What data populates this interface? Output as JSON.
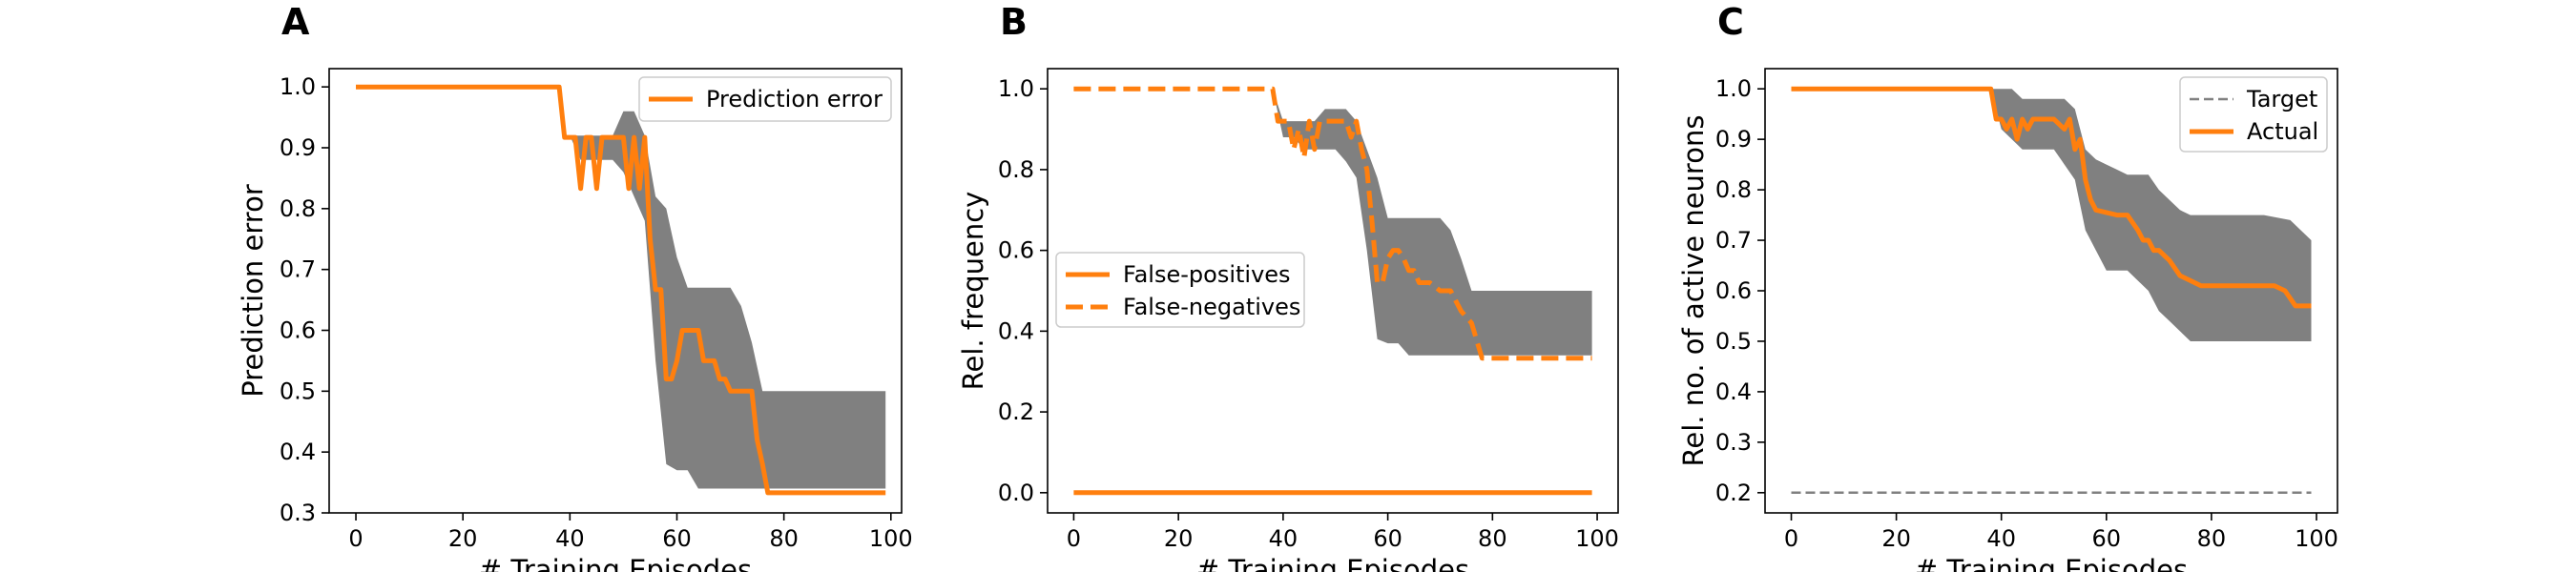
{
  "figure": {
    "panels": [
      {
        "letter": "A"
      },
      {
        "letter": "B"
      },
      {
        "letter": "C"
      }
    ]
  },
  "colors": {
    "orange": "#ff7f0e",
    "band": "#808080",
    "target": "#808080",
    "axis": "#000000",
    "legend_border": "#cccccc"
  },
  "chart_data": [
    {
      "type": "line",
      "panel": "A",
      "title": "",
      "xlabel": "# Training Episodes",
      "ylabel": "Prediction error",
      "xlim": [
        -5,
        102
      ],
      "ylim": [
        0.3,
        1.03
      ],
      "xticks": [
        0,
        20,
        40,
        60,
        80,
        100
      ],
      "yticks": [
        0.3,
        0.4,
        0.5,
        0.6,
        0.7,
        0.8,
        0.9,
        1.0
      ],
      "ytick_labels": [
        "0.3",
        "0.4",
        "0.5",
        "0.6",
        "0.7",
        "0.8",
        "0.9",
        "1.0"
      ],
      "grid": false,
      "legend": {
        "position": "top-right"
      },
      "band": {
        "x": [
          0,
          38,
          40,
          42,
          44,
          46,
          48,
          50,
          52,
          54,
          56,
          58,
          60,
          62,
          64,
          66,
          68,
          70,
          72,
          74,
          76,
          78,
          80,
          85,
          90,
          95,
          99
        ],
        "upper": [
          1.0,
          1.0,
          0.92,
          0.92,
          0.92,
          0.92,
          0.92,
          0.96,
          0.96,
          0.92,
          0.82,
          0.8,
          0.72,
          0.67,
          0.67,
          0.67,
          0.67,
          0.67,
          0.64,
          0.58,
          0.5,
          0.5,
          0.5,
          0.5,
          0.5,
          0.5,
          0.5
        ],
        "lower": [
          1.0,
          1.0,
          0.92,
          0.88,
          0.88,
          0.88,
          0.88,
          0.86,
          0.82,
          0.78,
          0.55,
          0.38,
          0.37,
          0.37,
          0.34,
          0.34,
          0.34,
          0.34,
          0.34,
          0.34,
          0.34,
          0.34,
          0.34,
          0.34,
          0.34,
          0.34,
          0.34
        ]
      },
      "series": [
        {
          "name": "Prediction error",
          "style": "solid",
          "x": [
            0,
            38,
            39,
            41,
            42,
            43,
            44,
            45,
            46,
            47,
            48,
            49,
            50,
            51,
            52,
            53,
            54,
            55,
            56,
            57,
            58,
            59,
            60,
            61,
            62,
            63,
            64,
            65,
            66,
            67,
            68,
            69,
            70,
            71,
            72,
            73,
            74,
            75,
            76,
            77,
            78,
            99
          ],
          "y": [
            1.0,
            1.0,
            0.917,
            0.917,
            0.833,
            0.917,
            0.917,
            0.833,
            0.917,
            0.917,
            0.917,
            0.917,
            0.917,
            0.833,
            0.917,
            0.833,
            0.917,
            0.75,
            0.667,
            0.667,
            0.52,
            0.52,
            0.55,
            0.6,
            0.6,
            0.6,
            0.6,
            0.55,
            0.55,
            0.55,
            0.52,
            0.52,
            0.5,
            0.5,
            0.5,
            0.5,
            0.5,
            0.42,
            0.38,
            0.333,
            0.333,
            0.333
          ]
        }
      ]
    },
    {
      "type": "line",
      "panel": "B",
      "title": "",
      "xlabel": "# Training Episodes",
      "ylabel": "Rel. frequency",
      "xlim": [
        -5,
        104
      ],
      "ylim": [
        -0.05,
        1.05
      ],
      "xticks": [
        0,
        20,
        40,
        60,
        80,
        100
      ],
      "yticks": [
        0.0,
        0.2,
        0.4,
        0.6,
        0.8,
        1.0
      ],
      "ytick_labels": [
        "0.0",
        "0.2",
        "0.4",
        "0.6",
        "0.8",
        "1.0"
      ],
      "grid": false,
      "legend": {
        "position": "center-left"
      },
      "band": {
        "x": [
          0,
          38,
          40,
          42,
          44,
          46,
          48,
          50,
          52,
          54,
          56,
          58,
          60,
          62,
          64,
          66,
          68,
          70,
          72,
          74,
          76,
          78,
          80,
          85,
          90,
          95,
          99
        ],
        "upper": [
          1.0,
          1.0,
          0.92,
          0.92,
          0.92,
          0.92,
          0.95,
          0.95,
          0.95,
          0.92,
          0.85,
          0.78,
          0.68,
          0.68,
          0.68,
          0.68,
          0.68,
          0.68,
          0.65,
          0.58,
          0.5,
          0.5,
          0.5,
          0.5,
          0.5,
          0.5,
          0.5
        ],
        "lower": [
          1.0,
          1.0,
          0.88,
          0.88,
          0.85,
          0.85,
          0.85,
          0.85,
          0.82,
          0.78,
          0.6,
          0.38,
          0.37,
          0.37,
          0.34,
          0.34,
          0.34,
          0.34,
          0.34,
          0.34,
          0.34,
          0.34,
          0.34,
          0.34,
          0.34,
          0.34,
          0.34
        ]
      },
      "series": [
        {
          "name": "False-positives",
          "style": "solid",
          "x": [
            0,
            99
          ],
          "y": [
            0.0,
            0.0
          ]
        },
        {
          "name": "False-negatives",
          "style": "dashed",
          "x": [
            0,
            38,
            39,
            41,
            42,
            43,
            44,
            45,
            46,
            47,
            48,
            50,
            52,
            53,
            54,
            55,
            56,
            57,
            58,
            59,
            60,
            61,
            62,
            63,
            64,
            65,
            66,
            68,
            70,
            72,
            74,
            76,
            78,
            80,
            99
          ],
          "y": [
            1.0,
            1.0,
            0.92,
            0.92,
            0.85,
            0.9,
            0.83,
            0.92,
            0.85,
            0.92,
            0.92,
            0.92,
            0.92,
            0.88,
            0.92,
            0.85,
            0.8,
            0.67,
            0.52,
            0.52,
            0.58,
            0.6,
            0.6,
            0.58,
            0.55,
            0.55,
            0.52,
            0.52,
            0.5,
            0.5,
            0.45,
            0.42,
            0.333,
            0.333,
            0.333
          ]
        }
      ]
    },
    {
      "type": "line",
      "panel": "C",
      "title": "",
      "xlabel": "# Training Episodes",
      "ylabel": "Rel. no. of active neurons",
      "xlim": [
        -5,
        104
      ],
      "ylim": [
        0.16,
        1.04
      ],
      "xticks": [
        0,
        20,
        40,
        60,
        80,
        100
      ],
      "yticks": [
        0.2,
        0.3,
        0.4,
        0.5,
        0.6,
        0.7,
        0.8,
        0.9,
        1.0
      ],
      "ytick_labels": [
        "0.2",
        "0.3",
        "0.4",
        "0.5",
        "0.6",
        "0.7",
        "0.8",
        "0.9",
        "1.0"
      ],
      "grid": false,
      "legend": {
        "position": "top-right"
      },
      "band": {
        "x": [
          0,
          38,
          40,
          42,
          44,
          46,
          48,
          50,
          52,
          54,
          56,
          58,
          60,
          62,
          64,
          66,
          68,
          70,
          72,
          74,
          76,
          78,
          80,
          85,
          90,
          95,
          99
        ],
        "upper": [
          1.0,
          1.0,
          1.0,
          1.0,
          0.98,
          0.98,
          0.98,
          0.98,
          0.98,
          0.96,
          0.88,
          0.86,
          0.85,
          0.84,
          0.83,
          0.83,
          0.83,
          0.8,
          0.78,
          0.76,
          0.75,
          0.75,
          0.75,
          0.75,
          0.75,
          0.74,
          0.7
        ],
        "lower": [
          1.0,
          1.0,
          0.92,
          0.9,
          0.88,
          0.88,
          0.88,
          0.88,
          0.85,
          0.82,
          0.72,
          0.68,
          0.64,
          0.64,
          0.64,
          0.62,
          0.6,
          0.56,
          0.54,
          0.52,
          0.5,
          0.5,
          0.5,
          0.5,
          0.5,
          0.5,
          0.5
        ]
      },
      "series": [
        {
          "name": "Target",
          "style": "dashed-thin",
          "x": [
            0,
            99
          ],
          "y": [
            0.2,
            0.2
          ]
        },
        {
          "name": "Actual",
          "style": "solid",
          "x": [
            0,
            38,
            39,
            40,
            41,
            42,
            43,
            44,
            45,
            46,
            47,
            48,
            50,
            52,
            53,
            54,
            55,
            56,
            57,
            58,
            60,
            62,
            64,
            66,
            67,
            68,
            69,
            70,
            72,
            74,
            76,
            78,
            80,
            84,
            88,
            92,
            94,
            96,
            99
          ],
          "y": [
            1.0,
            1.0,
            0.94,
            0.94,
            0.92,
            0.94,
            0.9,
            0.94,
            0.92,
            0.94,
            0.94,
            0.94,
            0.94,
            0.92,
            0.94,
            0.88,
            0.9,
            0.82,
            0.78,
            0.76,
            0.755,
            0.75,
            0.75,
            0.72,
            0.7,
            0.7,
            0.68,
            0.68,
            0.66,
            0.63,
            0.62,
            0.61,
            0.61,
            0.61,
            0.61,
            0.61,
            0.6,
            0.57,
            0.57
          ]
        }
      ]
    }
  ]
}
